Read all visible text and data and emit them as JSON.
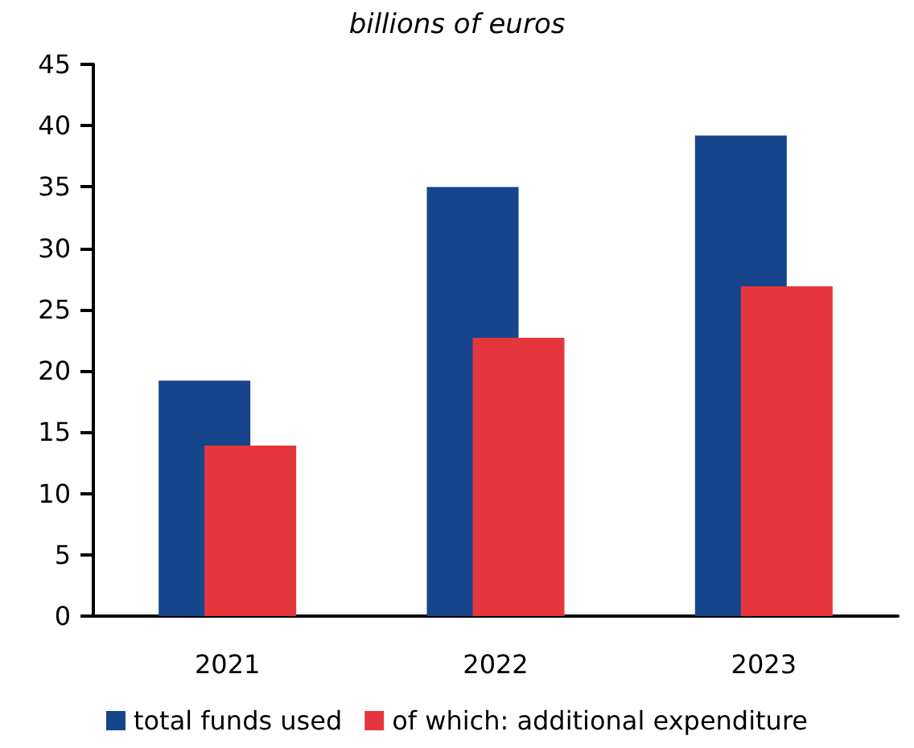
{
  "chart_data": {
    "type": "bar",
    "subtitle": "billions of euros",
    "categories": [
      "2021",
      "2022",
      "2023"
    ],
    "series": [
      {
        "name": "total funds used",
        "color": "#16458b",
        "values": [
          19.2,
          35.0,
          39.2
        ]
      },
      {
        "name": "of which: additional expenditure",
        "color": "#e5363d",
        "values": [
          13.9,
          22.7,
          26.9
        ]
      }
    ],
    "ylim": [
      0,
      45
    ],
    "yticks": [
      0,
      5,
      10,
      15,
      20,
      25,
      30,
      35,
      40,
      45
    ],
    "grid": false,
    "legend": "bottom"
  }
}
